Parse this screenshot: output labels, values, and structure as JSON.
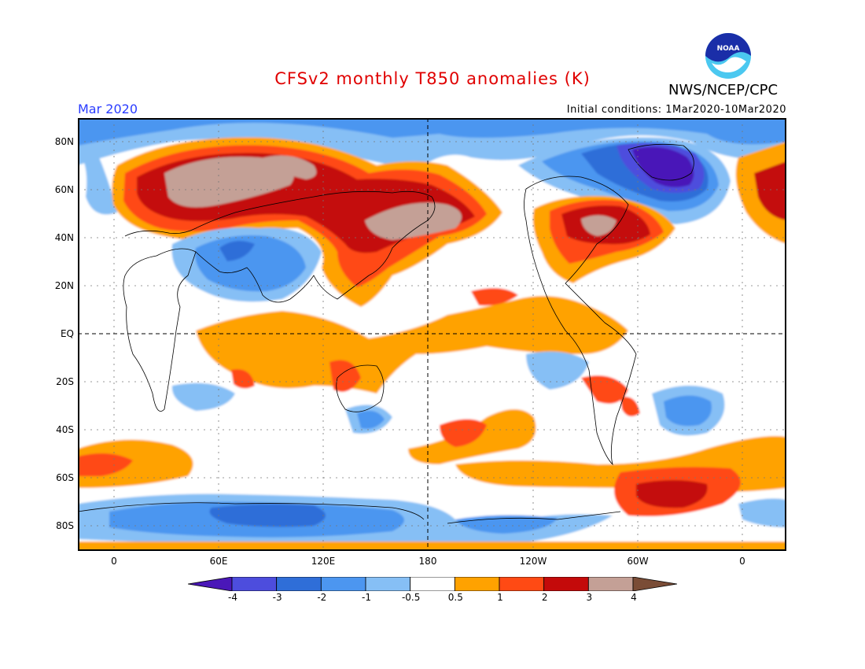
{
  "header": {
    "title": "CFSv2 monthly T850 anomalies (K)",
    "agency": "NWS/NCEP/CPC",
    "period": "Mar 2020",
    "initial_conditions": "Initial conditions: 1Mar2020-10Mar2020",
    "logo_text": "NOAA"
  },
  "axes": {
    "lat_labels": [
      "80N",
      "60N",
      "40N",
      "20N",
      "EQ",
      "20S",
      "40S",
      "60S",
      "80S"
    ],
    "lon_labels": [
      "0",
      "60E",
      "120E",
      "180",
      "120W",
      "60W",
      "0"
    ]
  },
  "colorbar": {
    "labels": [
      "-4",
      "-3",
      "-2",
      "-1",
      "-0.5",
      "0.5",
      "1",
      "2",
      "3",
      "4"
    ],
    "colors": [
      "#4a17b8",
      "#4d4ddd",
      "#2f6ed8",
      "#4c96f0",
      "#86bff5",
      "#ffffff",
      "#ffa200",
      "#ff4a14",
      "#c40a0a",
      "#c4a096",
      "#7a4c36"
    ]
  },
  "colors": {
    "title": "#e00000",
    "period": "#2a3cff",
    "neg4": "#4a17b8",
    "neg3": "#4d4ddd",
    "neg2": "#2f6ed8",
    "neg1": "#4c96f0",
    "neg05": "#86bff5",
    "pos05": "#ffa200",
    "pos1": "#ff4a14",
    "pos2": "#c40a0a",
    "pos3": "#c4a096"
  }
}
